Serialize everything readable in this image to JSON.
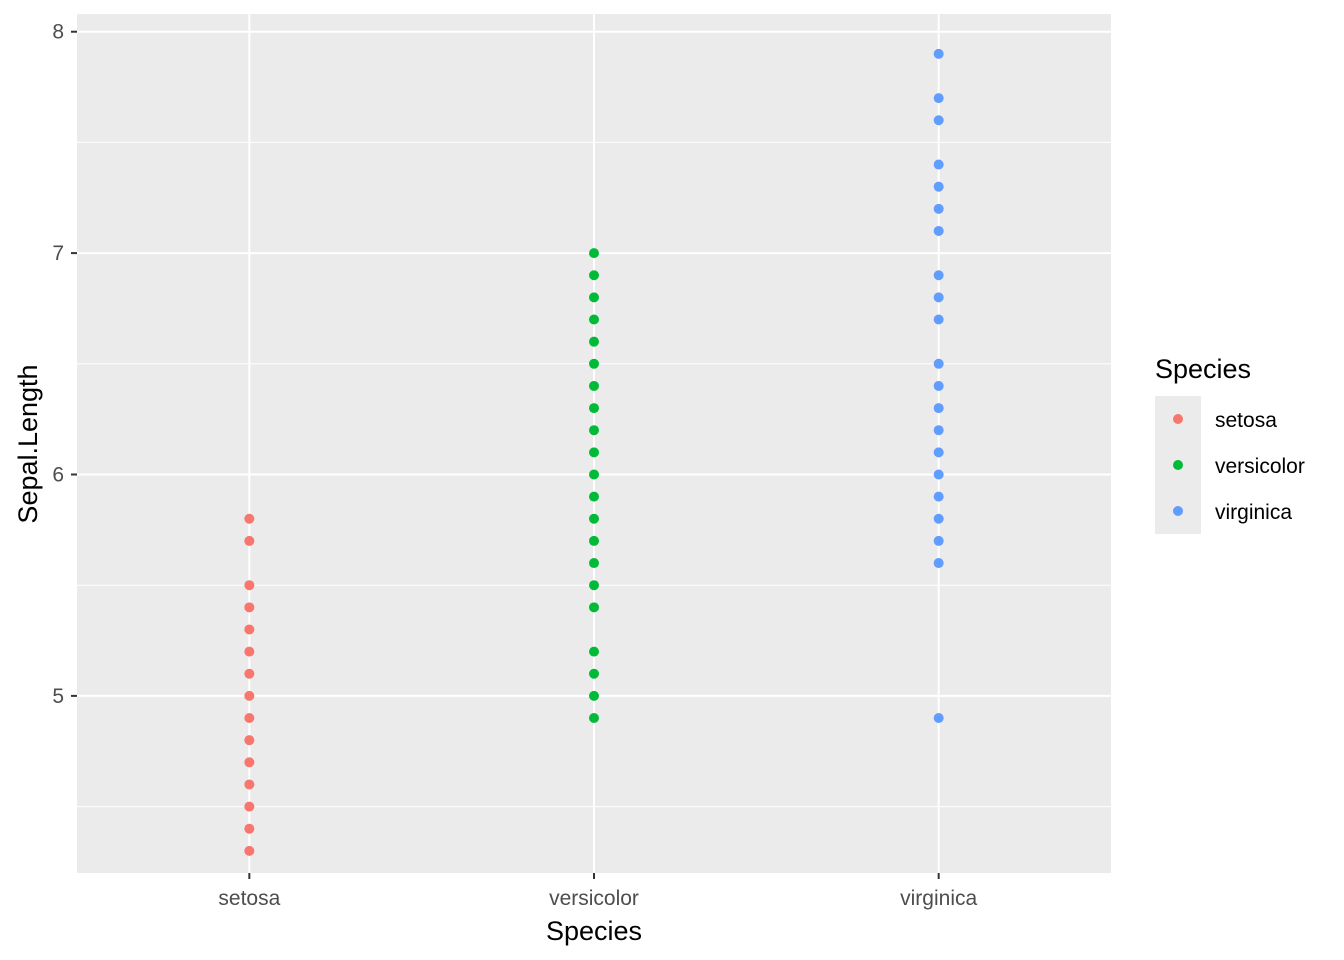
{
  "chart_data": {
    "type": "scatter",
    "xlabel": "Species",
    "ylabel": "Sepal.Length",
    "categories": [
      "setosa",
      "versicolor",
      "virginica"
    ],
    "ylim": [
      4.2,
      8.08
    ],
    "y_ticks": [
      5,
      6,
      7,
      8
    ],
    "grid": true,
    "legend": {
      "title": "Species",
      "position": "right",
      "entries": [
        "setosa",
        "versicolor",
        "virginica"
      ]
    },
    "series": [
      {
        "name": "setosa",
        "color": "#F8766D",
        "x": "setosa",
        "values": [
          4.3,
          4.4,
          4.5,
          4.6,
          4.7,
          4.8,
          4.9,
          5.0,
          5.1,
          5.2,
          5.3,
          5.4,
          5.5,
          5.7,
          5.8
        ]
      },
      {
        "name": "versicolor",
        "color": "#00BA38",
        "x": "versicolor",
        "values": [
          4.9,
          5.0,
          5.1,
          5.2,
          5.4,
          5.5,
          5.6,
          5.7,
          5.8,
          5.9,
          6.0,
          6.1,
          6.2,
          6.3,
          6.4,
          6.5,
          6.6,
          6.7,
          6.8,
          6.9,
          7.0
        ]
      },
      {
        "name": "virginica",
        "color": "#619CFF",
        "x": "virginica",
        "values": [
          4.9,
          5.6,
          5.7,
          5.8,
          5.9,
          6.0,
          6.1,
          6.2,
          6.3,
          6.4,
          6.5,
          6.7,
          6.8,
          6.9,
          7.1,
          7.2,
          7.3,
          7.4,
          7.6,
          7.7,
          7.9
        ]
      }
    ]
  }
}
